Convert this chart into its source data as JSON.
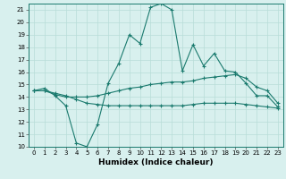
{
  "x": [
    0,
    1,
    2,
    3,
    4,
    5,
    6,
    7,
    8,
    9,
    10,
    11,
    12,
    13,
    14,
    15,
    16,
    17,
    18,
    19,
    20,
    21,
    22,
    23
  ],
  "series1": [
    14.5,
    14.7,
    14.1,
    13.3,
    10.3,
    10.0,
    11.8,
    15.1,
    16.7,
    19.0,
    18.3,
    21.2,
    21.5,
    21.0,
    16.1,
    18.2,
    16.5,
    17.5,
    16.1,
    16.0,
    15.1,
    14.1,
    14.1,
    13.2
  ],
  "series2": [
    14.5,
    14.5,
    14.2,
    14.0,
    14.0,
    14.0,
    14.1,
    14.3,
    14.5,
    14.7,
    14.8,
    15.0,
    15.1,
    15.2,
    15.2,
    15.3,
    15.5,
    15.6,
    15.7,
    15.8,
    15.5,
    14.8,
    14.5,
    13.5
  ],
  "series3": [
    14.5,
    14.5,
    14.3,
    14.1,
    13.8,
    13.5,
    13.4,
    13.3,
    13.3,
    13.3,
    13.3,
    13.3,
    13.3,
    13.3,
    13.3,
    13.4,
    13.5,
    13.5,
    13.5,
    13.5,
    13.4,
    13.3,
    13.2,
    13.1
  ],
  "line_color": "#1a7a6e",
  "bg_color": "#d8f0ee",
  "grid_color": "#b8ddd8",
  "xlabel": "Humidex (Indice chaleur)",
  "ylim": [
    10,
    21.5
  ],
  "xlim": [
    -0.5,
    23.5
  ],
  "yticks": [
    10,
    11,
    12,
    13,
    14,
    15,
    16,
    17,
    18,
    19,
    20,
    21
  ],
  "xticks": [
    0,
    1,
    2,
    3,
    4,
    5,
    6,
    7,
    8,
    9,
    10,
    11,
    12,
    13,
    14,
    15,
    16,
    17,
    18,
    19,
    20,
    21,
    22,
    23
  ],
  "xlabel_fontsize": 6.5,
  "tick_fontsize": 5.0
}
